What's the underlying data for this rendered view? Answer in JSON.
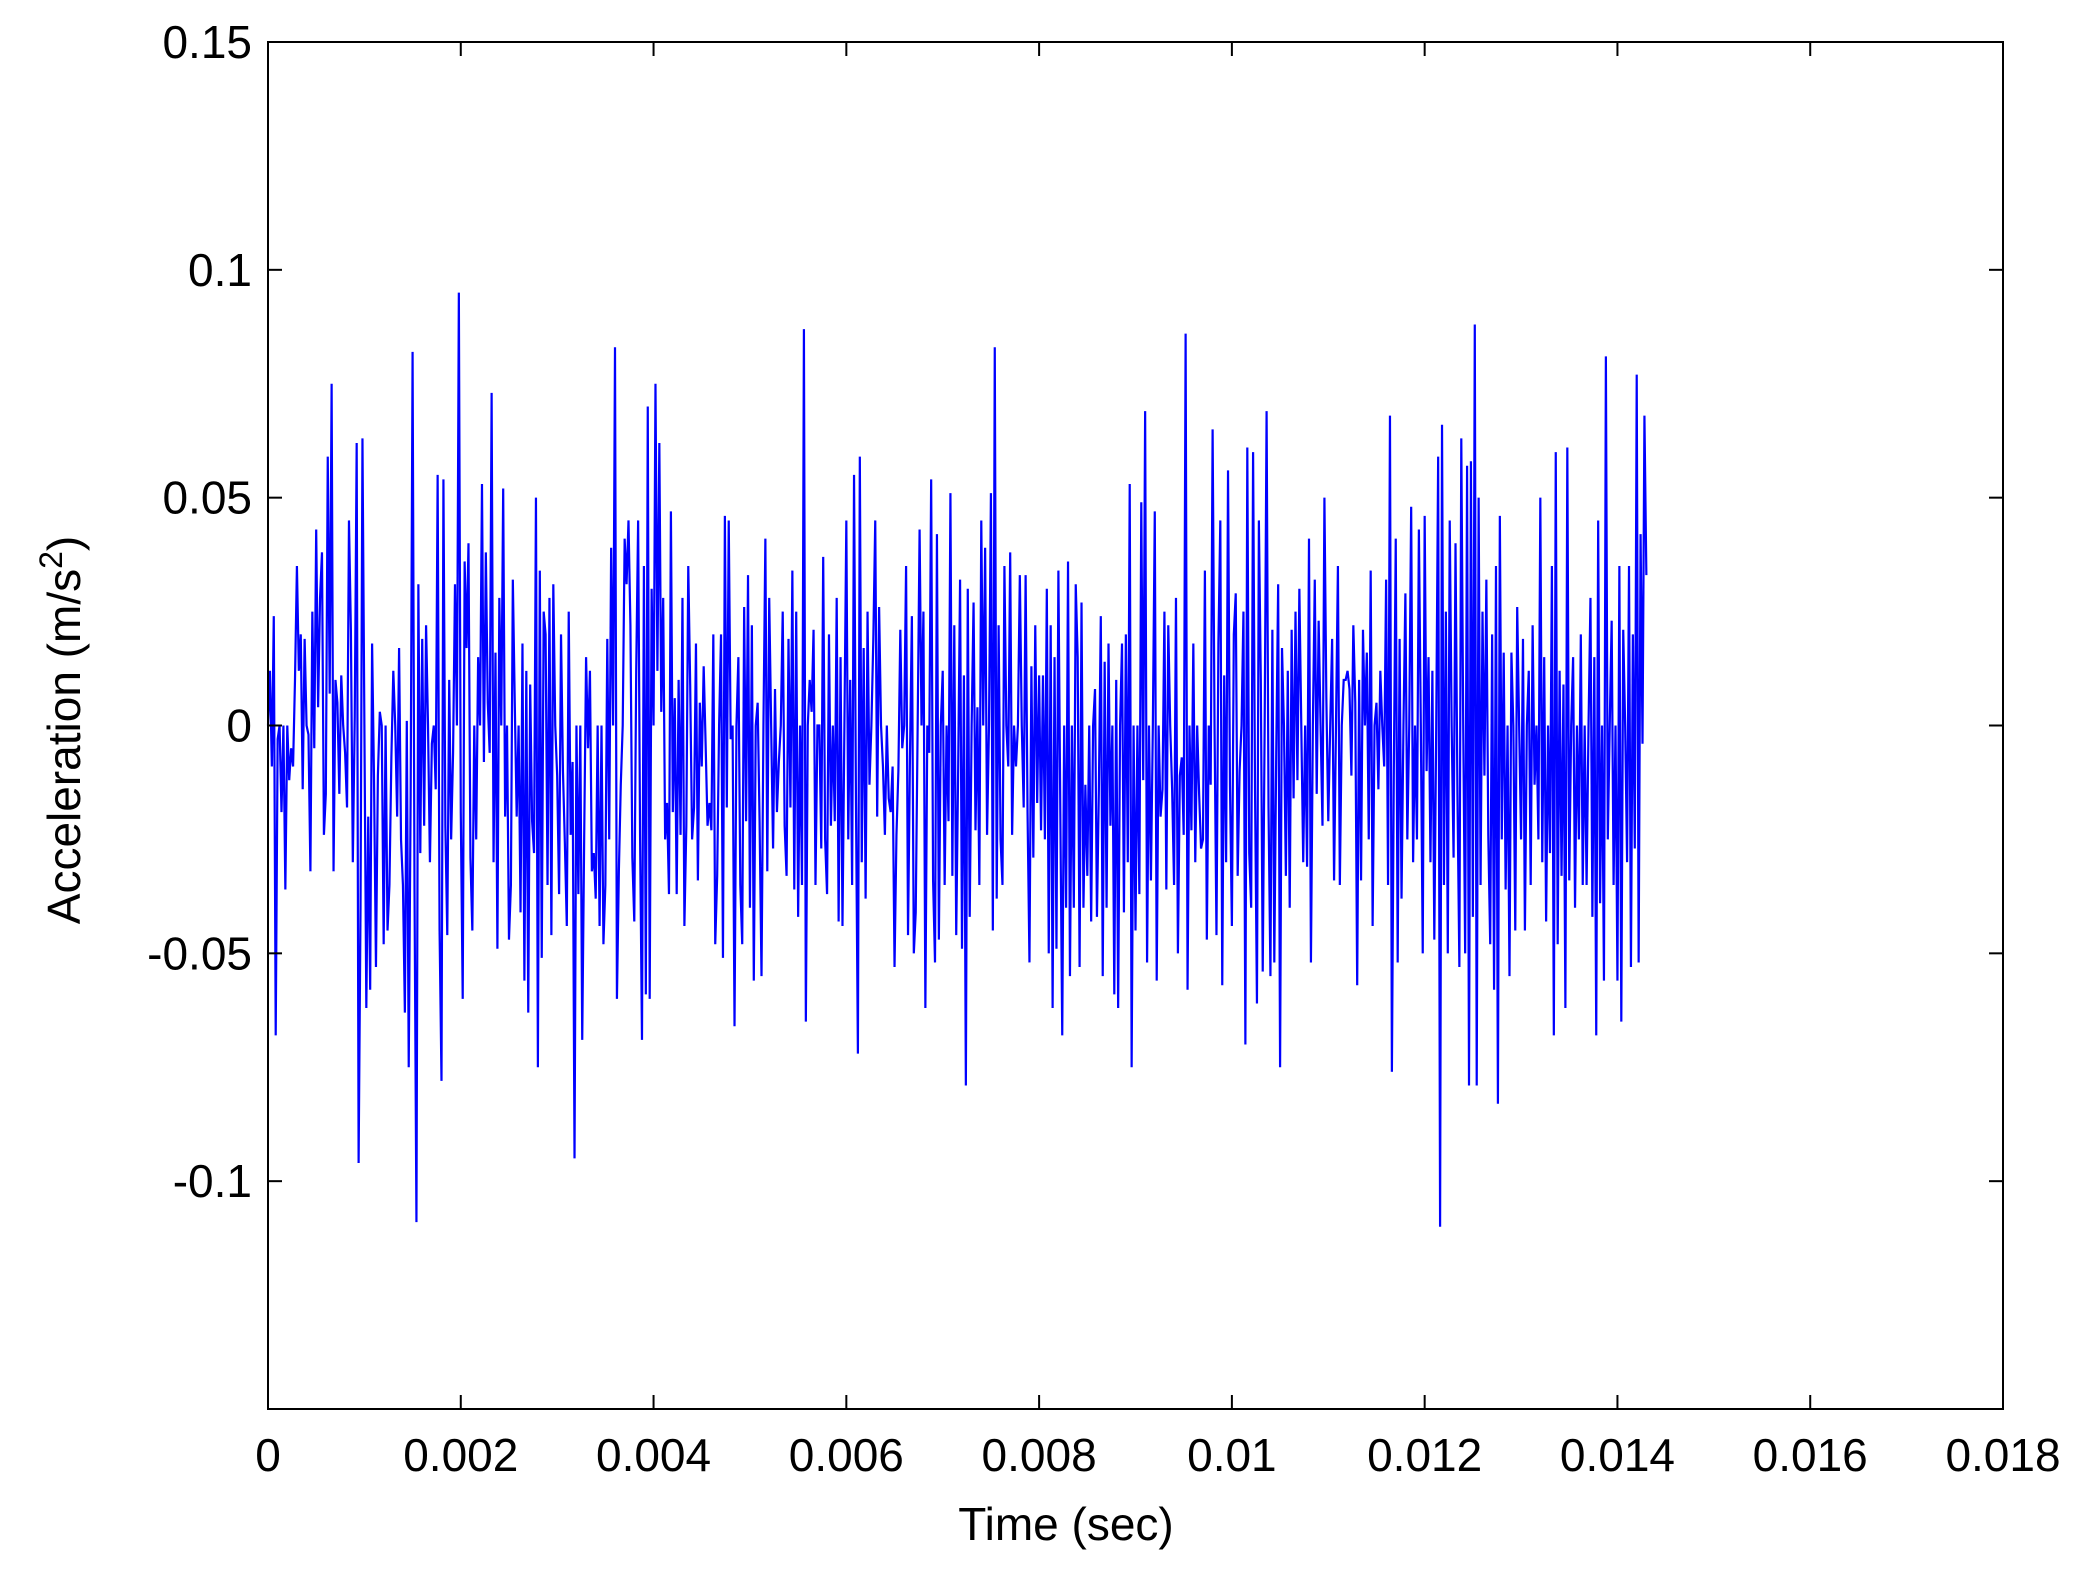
{
  "chart_data": {
    "type": "line",
    "title": "",
    "xlabel": "Time (sec)",
    "ylabel_main": "Acceleration (m/s",
    "ylabel_sup": "2",
    "ylabel_close": ")",
    "xlim": [
      0,
      0.018
    ],
    "ylim": [
      -0.15,
      0.15
    ],
    "xticks": [
      0,
      0.002,
      0.004,
      0.006,
      0.008,
      0.01,
      0.012,
      0.014,
      0.016,
      0.018
    ],
    "xtick_labels": [
      "0",
      "0.002",
      "0.004",
      "0.006",
      "0.008",
      "0.01",
      "0.012",
      "0.014",
      "0.016",
      "0.018"
    ],
    "yticks": [
      -0.1,
      -0.05,
      0,
      0.05,
      0.1,
      0.15
    ],
    "ytick_labels": [
      "-0.1",
      "-0.05",
      "0",
      "0.05",
      "0.1",
      "0.15"
    ],
    "grid": false,
    "legend": "none",
    "series": [
      {
        "color": "#0000ff",
        "x_start": 0,
        "x_step": 2e-05,
        "y": [
          0.0,
          0.012,
          -0.009,
          0.024,
          -0.068,
          -0.003,
          0.0,
          -0.019,
          0.0,
          -0.036,
          0.0,
          -0.012,
          -0.005,
          -0.009,
          0.01,
          0.035,
          0.012,
          0.02,
          -0.014,
          0.019,
          0.0,
          -0.002,
          -0.032,
          0.025,
          -0.005,
          0.043,
          0.004,
          0.028,
          0.038,
          -0.024,
          -0.015,
          0.059,
          0.007,
          0.075,
          -0.032,
          0.01,
          0.005,
          -0.015,
          0.011,
          0.0,
          -0.006,
          -0.018,
          0.045,
          0.021,
          -0.03,
          0.002,
          0.062,
          -0.096,
          -0.04,
          0.063,
          0.0,
          -0.062,
          -0.02,
          -0.058,
          0.018,
          -0.012,
          -0.053,
          -0.011,
          0.003,
          0.0,
          -0.048,
          0.0,
          -0.045,
          -0.035,
          -0.007,
          0.012,
          0.0,
          -0.02,
          0.017,
          -0.025,
          -0.035,
          -0.063,
          0.001,
          -0.075,
          -0.015,
          0.082,
          -0.036,
          -0.109,
          0.031,
          -0.028,
          0.019,
          -0.022,
          0.022,
          0.0,
          -0.03,
          -0.004,
          0.0,
          -0.014,
          0.055,
          -0.045,
          -0.078,
          0.054,
          -0.022,
          -0.046,
          0.01,
          -0.025,
          -0.006,
          0.031,
          0.0,
          0.095,
          -0.019,
          -0.06,
          0.036,
          0.017,
          0.04,
          -0.029,
          -0.045,
          0.0,
          -0.025,
          0.015,
          0.0,
          0.053,
          -0.008,
          0.038,
          0.005,
          -0.006,
          0.073,
          -0.03,
          0.016,
          -0.049,
          0.028,
          0.0,
          0.052,
          -0.02,
          0.0,
          -0.047,
          -0.035,
          0.032,
          0.005,
          -0.02,
          0.0,
          -0.041,
          0.018,
          -0.056,
          0.012,
          -0.063,
          0.009,
          -0.021,
          -0.028,
          0.05,
          -0.075,
          0.034,
          -0.051,
          0.025,
          0.02,
          -0.035,
          0.028,
          -0.046,
          0.031,
          0.0,
          -0.011,
          -0.037,
          0.02,
          -0.01,
          -0.026,
          -0.044,
          0.025,
          -0.024,
          -0.008,
          -0.095,
          0.0,
          -0.037,
          0.0,
          -0.069,
          -0.025,
          0.015,
          -0.005,
          0.012,
          -0.032,
          -0.028,
          -0.038,
          0.0,
          -0.044,
          0.0,
          -0.048,
          -0.035,
          0.019,
          -0.025,
          0.039,
          0.0,
          0.083,
          -0.06,
          -0.032,
          -0.013,
          0.0,
          0.041,
          0.031,
          0.045,
          0.022,
          -0.029,
          -0.043,
          0.012,
          0.045,
          -0.024,
          -0.069,
          0.035,
          -0.059,
          0.07,
          -0.06,
          0.03,
          0.0,
          0.075,
          0.012,
          0.062,
          0.003,
          0.028,
          -0.025,
          -0.017,
          -0.037,
          0.047,
          -0.019,
          0.006,
          -0.037,
          0.01,
          -0.024,
          0.028,
          -0.044,
          -0.022,
          0.035,
          0.009,
          -0.025,
          -0.018,
          0.018,
          -0.034,
          0.005,
          -0.009,
          0.013,
          -0.004,
          -0.022,
          -0.017,
          -0.023,
          0.02,
          -0.048,
          -0.033,
          0.0,
          0.02,
          -0.051,
          0.046,
          -0.018,
          0.045,
          -0.003,
          0.0,
          -0.066,
          0.0,
          0.015,
          -0.035,
          -0.048,
          0.026,
          -0.021,
          0.033,
          -0.04,
          0.022,
          -0.056,
          0.0,
          0.005,
          -0.021,
          -0.055,
          0.0,
          0.041,
          -0.032,
          0.028,
          0.0,
          -0.027,
          0.008,
          -0.019,
          -0.008,
          0.0,
          0.025,
          -0.022,
          -0.033,
          0.019,
          -0.018,
          0.034,
          -0.036,
          0.025,
          -0.042,
          0.0,
          -0.035,
          0.087,
          -0.065,
          0.0,
          0.01,
          0.003,
          0.021,
          -0.035,
          0.0,
          0.0,
          -0.027,
          0.037,
          -0.025,
          -0.037,
          0.02,
          -0.022,
          0.0,
          -0.021,
          0.028,
          -0.043,
          0.015,
          -0.044,
          0.0,
          0.045,
          -0.025,
          0.01,
          -0.035,
          0.055,
          -0.017,
          -0.072,
          0.059,
          -0.03,
          0.017,
          -0.038,
          0.025,
          -0.013,
          0.0,
          0.019,
          0.045,
          -0.02,
          0.026,
          0.0,
          -0.009,
          -0.024,
          0.0,
          -0.016,
          -0.019,
          -0.009,
          -0.053,
          -0.024,
          -0.01,
          0.021,
          -0.005,
          0.0,
          0.035,
          -0.046,
          -0.007,
          0.024,
          -0.05,
          -0.041,
          0.0,
          0.043,
          0.0,
          0.025,
          -0.062,
          0.0,
          -0.006,
          0.054,
          -0.034,
          -0.052,
          0.042,
          -0.047,
          0.0,
          0.012,
          -0.035,
          0.0,
          -0.021,
          0.051,
          -0.033,
          0.022,
          -0.046,
          -0.01,
          0.032,
          -0.049,
          0.011,
          -0.079,
          0.03,
          -0.042,
          0.0,
          0.027,
          -0.023,
          0.004,
          -0.035,
          0.045,
          0.0,
          0.039,
          -0.024,
          0.0,
          0.051,
          -0.045,
          0.083,
          -0.038,
          0.022,
          -0.025,
          -0.035,
          0.035,
          0.0,
          -0.009,
          0.038,
          -0.024,
          0.0,
          -0.009,
          0.0,
          0.033,
          0.0,
          -0.018,
          0.033,
          -0.019,
          -0.052,
          0.013,
          -0.029,
          0.022,
          -0.017,
          0.011,
          -0.023,
          0.011,
          -0.025,
          0.03,
          -0.05,
          0.022,
          -0.062,
          0.015,
          -0.049,
          0.034,
          -0.019,
          -0.068,
          0.0,
          -0.04,
          0.036,
          -0.055,
          0.0,
          -0.04,
          0.031,
          0.015,
          -0.053,
          0.027,
          -0.04,
          -0.013,
          -0.033,
          0.0,
          -0.043,
          0.0,
          0.008,
          -0.042,
          -0.014,
          0.024,
          -0.055,
          0.014,
          -0.04,
          0.018,
          -0.022,
          0.0,
          -0.059,
          0.01,
          -0.062,
          0.0,
          0.018,
          -0.041,
          0.02,
          -0.03,
          0.053,
          -0.075,
          0.0,
          -0.045,
          0.0,
          -0.037,
          0.049,
          -0.012,
          0.069,
          -0.052,
          0.0,
          -0.034,
          0.0,
          0.047,
          -0.056,
          0.0,
          -0.02,
          -0.014,
          0.025,
          -0.036,
          0.022,
          0.0,
          -0.014,
          -0.035,
          0.028,
          -0.05,
          -0.011,
          -0.007,
          -0.024,
          0.086,
          -0.058,
          0.0,
          -0.023,
          0.018,
          -0.03,
          0.0,
          -0.015,
          -0.027,
          -0.025,
          0.034,
          -0.047,
          0.0,
          -0.013,
          0.065,
          0.0,
          -0.046,
          0.018,
          0.045,
          -0.057,
          0.011,
          -0.03,
          0.056,
          -0.013,
          -0.044,
          0.02,
          0.029,
          -0.033,
          -0.01,
          0.0,
          0.025,
          -0.07,
          0.061,
          -0.028,
          -0.04,
          0.06,
          -0.014,
          -0.061,
          0.045,
          0.01,
          -0.054,
          0.0,
          0.069,
          -0.018,
          -0.055,
          0.021,
          -0.052,
          -0.006,
          0.031,
          -0.075,
          0.017,
          0.0,
          -0.033,
          0.012,
          -0.04,
          0.021,
          -0.016,
          0.025,
          -0.012,
          0.03,
          0.0,
          -0.03,
          0.0,
          -0.031,
          0.041,
          -0.052,
          0.0,
          0.032,
          -0.015,
          0.023,
          0.0,
          -0.022,
          0.05,
          0.006,
          -0.021,
          0.0,
          0.019,
          -0.034,
          0.0,
          0.035,
          -0.035,
          0.0,
          0.01,
          0.01,
          0.012,
          0.008,
          -0.011,
          0.022,
          0.005,
          -0.057,
          0.01,
          -0.034,
          0.021,
          0.0,
          0.016,
          -0.025,
          0.034,
          -0.044,
          0.0,
          0.005,
          -0.014,
          0.012,
          0.0,
          -0.009,
          0.032,
          -0.035,
          0.068,
          -0.076,
          -0.01,
          0.041,
          -0.052,
          0.019,
          -0.038,
          0.0,
          0.029,
          -0.025,
          0.0,
          0.048,
          -0.03,
          0.0,
          -0.025,
          0.043,
          0.0,
          -0.05,
          0.046,
          -0.01,
          0.015,
          -0.03,
          0.012,
          -0.047,
          0.0,
          0.059,
          -0.11,
          0.066,
          -0.035,
          0.025,
          -0.05,
          0.045,
          0.0,
          -0.029,
          0.04,
          -0.015,
          -0.053,
          0.063,
          0.0,
          -0.05,
          0.057,
          -0.079,
          0.058,
          -0.042,
          0.088,
          -0.079,
          0.05,
          -0.035,
          0.025,
          -0.011,
          0.032,
          -0.024,
          -0.048,
          0.02,
          -0.058,
          0.035,
          -0.083,
          0.046,
          -0.025,
          0.016,
          -0.036,
          0.0,
          -0.055,
          0.016,
          0.0,
          -0.045,
          0.026,
          0.0,
          -0.025,
          0.019,
          -0.045,
          0.0,
          0.012,
          -0.035,
          0.022,
          -0.013,
          0.0,
          -0.025,
          0.05,
          -0.03,
          0.015,
          -0.043,
          0.0,
          -0.028,
          0.035,
          -0.068,
          0.06,
          -0.048,
          0.012,
          -0.033,
          0.009,
          -0.062,
          0.061,
          -0.034,
          0.0,
          0.015,
          -0.04,
          0.0,
          -0.025,
          0.02,
          -0.035,
          0.0,
          -0.035,
          0.0,
          0.028,
          -0.042,
          0.015,
          -0.068,
          0.045,
          -0.039,
          0.0,
          -0.056,
          0.081,
          -0.025,
          0.0,
          0.023,
          -0.035,
          0.0,
          -0.056,
          0.035,
          -0.065,
          0.021,
          0.0,
          -0.03,
          0.035,
          -0.053,
          0.02,
          -0.027,
          0.077,
          -0.052,
          0.042,
          -0.004,
          0.068,
          0.033
        ]
      }
    ]
  }
}
